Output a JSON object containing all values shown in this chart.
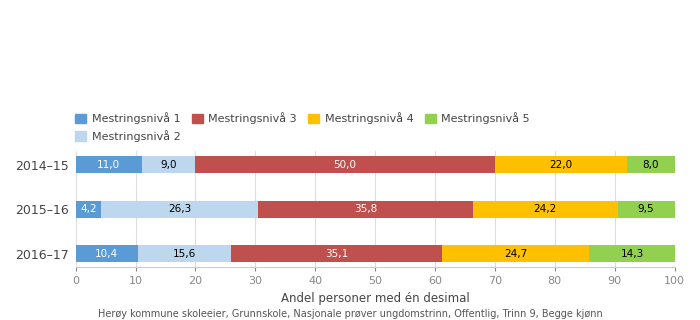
{
  "years": [
    "2014–15",
    "2015–16",
    "2016–17"
  ],
  "levels": [
    "Mestringsnivå 1",
    "Mestringsnivå 2",
    "Mestringsnivå 3",
    "Mestringsnivå 4",
    "Mestringsnivå 5"
  ],
  "values": [
    [
      11.0,
      9.0,
      50.0,
      22.0,
      8.0
    ],
    [
      4.2,
      26.3,
      35.8,
      24.2,
      9.5
    ],
    [
      10.4,
      15.6,
      35.1,
      24.7,
      14.3
    ]
  ],
  "colors": [
    "#5b9bd5",
    "#bdd7ee",
    "#c0504d",
    "#ffc000",
    "#92d050"
  ],
  "text_colors": [
    "white",
    "black",
    "white",
    "black",
    "black"
  ],
  "xlabel": "Andel personer med én desimal",
  "footer": "Herøy kommune skoleeier, Grunnskole, Nasjonale prøver ungdomstrinn, Offentlig, Trinn 9, Begge kjønn",
  "xlim": [
    0,
    100
  ],
  "xticks": [
    0,
    10,
    20,
    30,
    40,
    50,
    60,
    70,
    80,
    90,
    100
  ],
  "bar_height": 0.38,
  "figsize": [
    7.0,
    3.2
  ],
  "dpi": 100
}
